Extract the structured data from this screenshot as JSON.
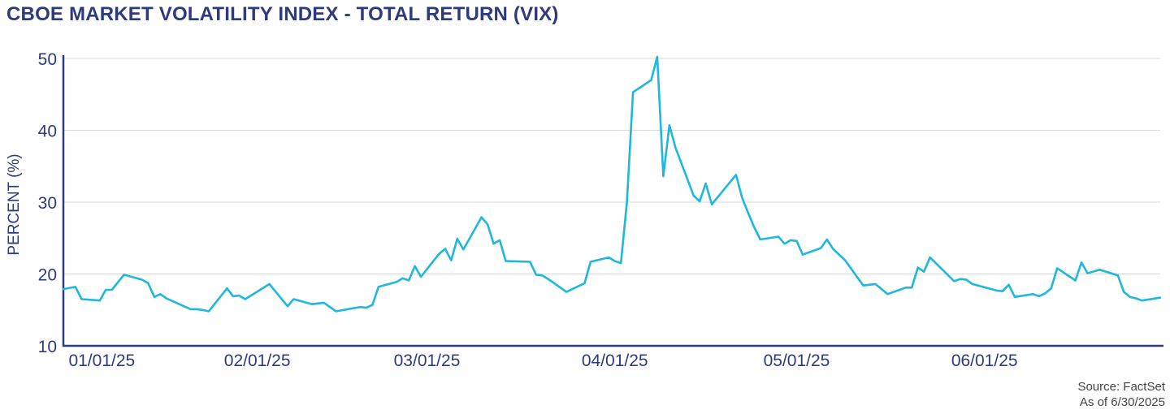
{
  "header": {
    "title": "CBOE MARKET VOLATILITY INDEX - TOTAL RETURN (VIX)"
  },
  "footer": {
    "source": "Source: FactSet",
    "as_of": "As of 6/30/2025"
  },
  "colors": {
    "line": "#1fb8dc",
    "text": "#2d3a7c",
    "grid": "#d9d9d9",
    "axis": "#2d3a7c"
  },
  "chart_data": {
    "type": "line",
    "title": "CBOE MARKET VOLATILITY INDEX - TOTAL RETURN (VIX)",
    "xlabel": "",
    "ylabel": "PERCENT (%)",
    "ylim": [
      10,
      50
    ],
    "xlim": [
      "2024-12-31",
      "2025-06-30"
    ],
    "yticks": [
      10,
      20,
      30,
      40,
      50
    ],
    "xticks": [
      {
        "date": "2025-01-01",
        "label": "01/01/25"
      },
      {
        "date": "2025-02-01",
        "label": "02/01/25"
      },
      {
        "date": "2025-03-01",
        "label": "03/01/25"
      },
      {
        "date": "2025-04-01",
        "label": "04/01/25"
      },
      {
        "date": "2025-05-01",
        "label": "05/01/25"
      },
      {
        "date": "2025-06-01",
        "label": "06/01/25"
      }
    ],
    "grid": true,
    "series": [
      {
        "points": [
          [
            "2024-12-31",
            17.9
          ],
          [
            "2025-01-02",
            18.2
          ],
          [
            "2025-01-03",
            16.5
          ],
          [
            "2025-01-06",
            16.3
          ],
          [
            "2025-01-07",
            17.8
          ],
          [
            "2025-01-08",
            17.8
          ],
          [
            "2025-01-10",
            19.9
          ],
          [
            "2025-01-13",
            19.2
          ],
          [
            "2025-01-14",
            18.7
          ],
          [
            "2025-01-15",
            16.8
          ],
          [
            "2025-01-16",
            17.2
          ],
          [
            "2025-01-17",
            16.6
          ],
          [
            "2025-01-21",
            15.1
          ],
          [
            "2025-01-22",
            15.1
          ],
          [
            "2025-01-23",
            15.0
          ],
          [
            "2025-01-24",
            14.8
          ],
          [
            "2025-01-27",
            18.0
          ],
          [
            "2025-01-28",
            16.9
          ],
          [
            "2025-01-29",
            17.0
          ],
          [
            "2025-01-30",
            16.5
          ],
          [
            "2025-02-03",
            18.6
          ],
          [
            "2025-02-06",
            15.5
          ],
          [
            "2025-02-07",
            16.5
          ],
          [
            "2025-02-10",
            15.8
          ],
          [
            "2025-02-12",
            16.0
          ],
          [
            "2025-02-14",
            14.8
          ],
          [
            "2025-02-18",
            15.4
          ],
          [
            "2025-02-19",
            15.3
          ],
          [
            "2025-02-20",
            15.7
          ],
          [
            "2025-02-21",
            18.2
          ],
          [
            "2025-02-24",
            18.9
          ],
          [
            "2025-02-25",
            19.4
          ],
          [
            "2025-02-26",
            19.1
          ],
          [
            "2025-02-27",
            21.1
          ],
          [
            "2025-02-28",
            19.6
          ],
          [
            "2025-03-03",
            22.8
          ],
          [
            "2025-03-04",
            23.5
          ],
          [
            "2025-03-05",
            21.9
          ],
          [
            "2025-03-06",
            24.9
          ],
          [
            "2025-03-07",
            23.4
          ],
          [
            "2025-03-10",
            27.9
          ],
          [
            "2025-03-11",
            26.9
          ],
          [
            "2025-03-12",
            24.2
          ],
          [
            "2025-03-13",
            24.7
          ],
          [
            "2025-03-14",
            21.8
          ],
          [
            "2025-03-18",
            21.7
          ],
          [
            "2025-03-19",
            19.9
          ],
          [
            "2025-03-20",
            19.8
          ],
          [
            "2025-03-21",
            19.3
          ],
          [
            "2025-03-24",
            17.5
          ],
          [
            "2025-03-26",
            18.3
          ],
          [
            "2025-03-27",
            18.7
          ],
          [
            "2025-03-28",
            21.7
          ],
          [
            "2025-03-31",
            22.3
          ],
          [
            "2025-04-01",
            21.8
          ],
          [
            "2025-04-02",
            21.5
          ],
          [
            "2025-04-03",
            30.0
          ],
          [
            "2025-04-04",
            45.3
          ],
          [
            "2025-04-07",
            46.98
          ],
          [
            "2025-04-08",
            52.3
          ],
          [
            "2025-04-09",
            33.6
          ],
          [
            "2025-04-10",
            40.7
          ],
          [
            "2025-04-11",
            37.6
          ],
          [
            "2025-04-14",
            30.9
          ],
          [
            "2025-04-15",
            30.1
          ],
          [
            "2025-04-16",
            32.6
          ],
          [
            "2025-04-17",
            29.7
          ],
          [
            "2025-04-21",
            33.8
          ],
          [
            "2025-04-22",
            30.6
          ],
          [
            "2025-04-23",
            28.5
          ],
          [
            "2025-04-24",
            26.5
          ],
          [
            "2025-04-25",
            24.8
          ],
          [
            "2025-04-28",
            25.2
          ],
          [
            "2025-04-29",
            24.2
          ],
          [
            "2025-04-30",
            24.7
          ],
          [
            "2025-05-01",
            24.6
          ],
          [
            "2025-05-02",
            22.7
          ],
          [
            "2025-05-05",
            23.6
          ],
          [
            "2025-05-06",
            24.8
          ],
          [
            "2025-05-07",
            23.5
          ],
          [
            "2025-05-09",
            21.9
          ],
          [
            "2025-05-12",
            18.4
          ],
          [
            "2025-05-14",
            18.6
          ],
          [
            "2025-05-16",
            17.2
          ],
          [
            "2025-05-19",
            18.1
          ],
          [
            "2025-05-20",
            18.1
          ],
          [
            "2025-05-21",
            20.9
          ],
          [
            "2025-05-22",
            20.3
          ],
          [
            "2025-05-23",
            22.3
          ],
          [
            "2025-05-27",
            19.0
          ],
          [
            "2025-05-28",
            19.3
          ],
          [
            "2025-05-29",
            19.2
          ],
          [
            "2025-05-30",
            18.6
          ],
          [
            "2025-06-03",
            17.7
          ],
          [
            "2025-06-04",
            17.6
          ],
          [
            "2025-06-05",
            18.5
          ],
          [
            "2025-06-06",
            16.8
          ],
          [
            "2025-06-09",
            17.2
          ],
          [
            "2025-06-10",
            16.9
          ],
          [
            "2025-06-11",
            17.3
          ],
          [
            "2025-06-12",
            18.0
          ],
          [
            "2025-06-13",
            20.8
          ],
          [
            "2025-06-16",
            19.1
          ],
          [
            "2025-06-17",
            21.6
          ],
          [
            "2025-06-18",
            20.1
          ],
          [
            "2025-06-20",
            20.6
          ],
          [
            "2025-06-23",
            19.8
          ],
          [
            "2025-06-24",
            17.5
          ],
          [
            "2025-06-25",
            16.8
          ],
          [
            "2025-06-26",
            16.6
          ],
          [
            "2025-06-27",
            16.3
          ],
          [
            "2025-06-30",
            16.7
          ]
        ]
      }
    ]
  }
}
